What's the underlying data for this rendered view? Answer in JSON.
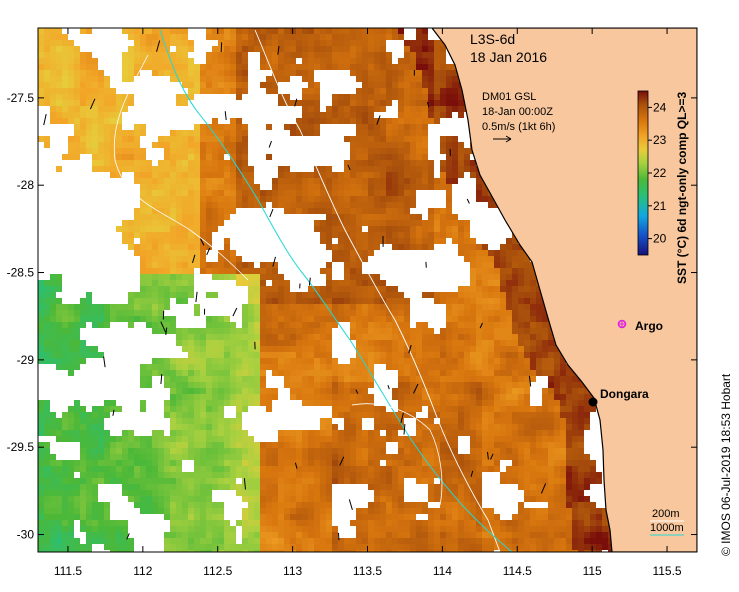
{
  "header": {
    "product": "L3S-6d",
    "date": "18 Jan 2016"
  },
  "wind_legend": {
    "source": "DM01 GSL",
    "time": "18-Jan 00:00Z",
    "scale": "0.5m/s (1kt 6h)"
  },
  "colorbar": {
    "title": "SST (°C) 6d ngt-only comp QL>=3",
    "ticks": [
      "20",
      "21",
      "22",
      "23",
      "24"
    ],
    "range": [
      19.5,
      24.5
    ]
  },
  "axes": {
    "x_ticks": [
      "111.5",
      "112",
      "112.5",
      "113",
      "113.5",
      "114",
      "114.5",
      "115",
      "115.5"
    ],
    "y_ticks": [
      "-27.5",
      "-28",
      "-28.5",
      "-29",
      "-29.5",
      "-30"
    ],
    "x_range": [
      111.3,
      115.7
    ],
    "y_range": [
      -30.1,
      -27.1
    ]
  },
  "markers": {
    "argo_label": "Argo",
    "town_label": "Dongara"
  },
  "isobath_legend": {
    "shallow": "200m",
    "deep": "1000m"
  },
  "credit": "© IMOS 06-Jul-2019 18:53 Hobart",
  "colors": {
    "land": "#f8c79e",
    "isobath_200": "#ffffff",
    "isobath_1000": "#20d8d8",
    "argo": "#e020e0",
    "town": "#000000"
  }
}
